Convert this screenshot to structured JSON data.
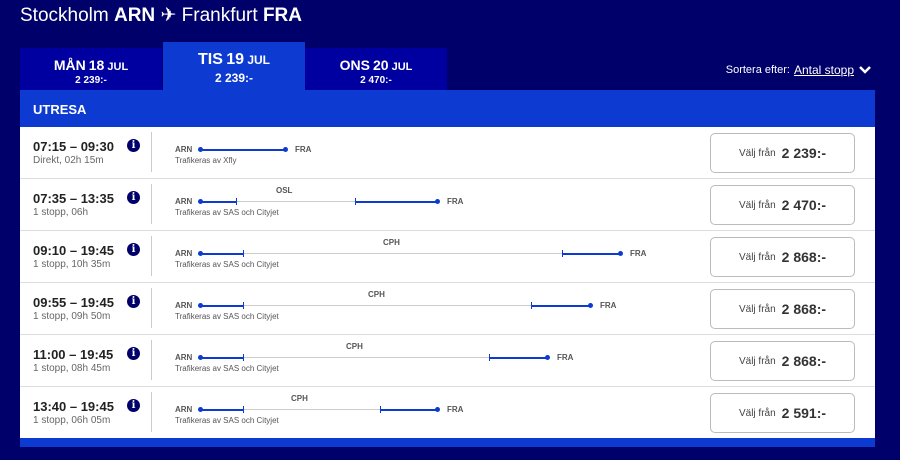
{
  "header": {
    "origin_city": "Stockholm",
    "origin_code": "ARN",
    "dest_city": "Frankfurt",
    "dest_code": "FRA",
    "plane_icon": "airplane-icon"
  },
  "date_tabs": [
    {
      "day": "MÅN",
      "num": "18",
      "month": "JUL",
      "price": "2 239:-",
      "selected": false
    },
    {
      "day": "TIS",
      "num": "19",
      "month": "JUL",
      "price": "2 239:-",
      "selected": true
    },
    {
      "day": "ONS",
      "num": "20",
      "month": "JUL",
      "price": "2 470:-",
      "selected": false
    }
  ],
  "sort": {
    "label": "Sortera efter:",
    "value": "Antal stopp"
  },
  "section_title": "UTRESA",
  "colors": {
    "background": "#00006b",
    "accent": "#0d3bd1"
  },
  "flights": [
    {
      "time": "07:15 – 09:30",
      "duration": "Direkt, 02h 15m",
      "from": "ARN",
      "to": "FRA",
      "stop": "",
      "operator": "Trafikeras av Xfly",
      "button_label": "Välj från",
      "price": "2 239:-"
    },
    {
      "time": "07:35 – 13:35",
      "duration": "1 stopp, 06h",
      "from": "ARN",
      "to": "FRA",
      "stop": "OSL",
      "operator": "Trafikeras av SAS och Cityjet",
      "button_label": "Välj från",
      "price": "2 470:-"
    },
    {
      "time": "09:10 – 19:45",
      "duration": "1 stopp, 10h 35m",
      "from": "ARN",
      "to": "FRA",
      "stop": "CPH",
      "operator": "Trafikeras av SAS och Cityjet",
      "button_label": "Välj från",
      "price": "2 868:-"
    },
    {
      "time": "09:55 – 19:45",
      "duration": "1 stopp, 09h 50m",
      "from": "ARN",
      "to": "FRA",
      "stop": "CPH",
      "operator": "Trafikeras av SAS och Cityjet",
      "button_label": "Välj från",
      "price": "2 868:-"
    },
    {
      "time": "11:00 – 19:45",
      "duration": "1 stopp, 08h 45m",
      "from": "ARN",
      "to": "FRA",
      "stop": "CPH",
      "operator": "Trafikeras av SAS och Cityjet",
      "button_label": "Välj från",
      "price": "2 868:-"
    },
    {
      "time": "13:40 – 19:45",
      "duration": "1 stopp, 06h 05m",
      "from": "ARN",
      "to": "FRA",
      "stop": "CPH",
      "operator": "Trafikeras av SAS och Cityjet",
      "button_label": "Välj från",
      "price": "2 591:-"
    }
  ]
}
